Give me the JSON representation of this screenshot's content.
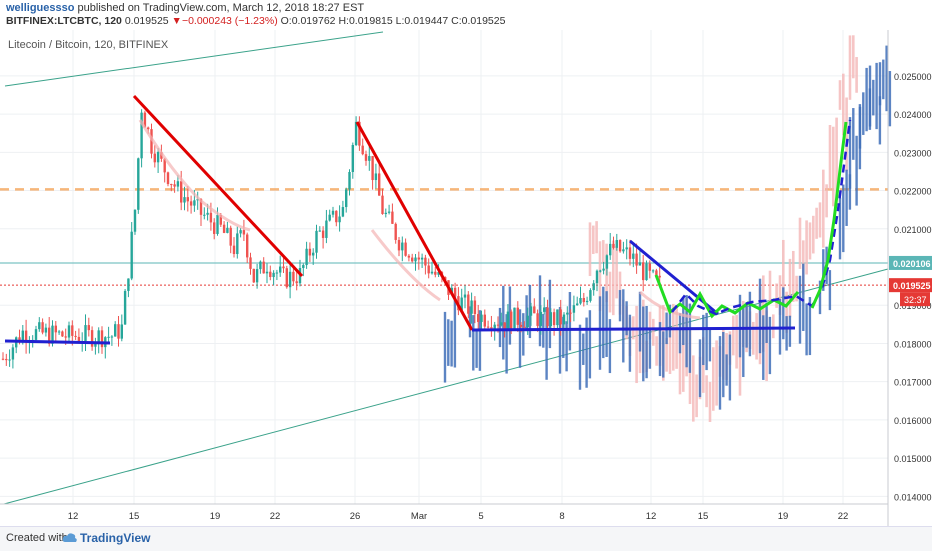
{
  "header": {
    "author": "welliguessso",
    "published_text": " published on TradingView.com, March 12, 2018 18:27 EST",
    "symbol": "BITFINEX:LTCBTC, 120",
    "last": "0.019525",
    "change_arrow": "▼",
    "change": "−0.000243 (−1.23%)",
    "open": "O:0.019762",
    "high": "H:0.019815",
    "low": "L:0.019447",
    "close": "C:0.019525"
  },
  "chart_data": {
    "type": "candlestick",
    "title": "Litecoin / Bitcoin, 120, BITFINEX",
    "x_ticks": [
      "12",
      "15",
      "19",
      "22",
      "26",
      "Mar",
      "5",
      "8",
      "12",
      "15",
      "19",
      "22"
    ],
    "y_ticks": [
      "0.025000",
      "0.024000",
      "0.023000",
      "0.022000",
      "0.021000",
      "0.019000",
      "0.018000",
      "0.017000",
      "0.016000",
      "0.015000",
      "0.014000"
    ],
    "ylim": [
      0.0138,
      0.0262
    ],
    "price_labels": [
      {
        "value": 0.020106,
        "text": "0.020106",
        "color": "#5bb6b6"
      },
      {
        "value": 0.019525,
        "text": "0.019525",
        "color": "#e53935"
      }
    ],
    "countdown": "32:37",
    "resistance_level": 0.02203,
    "colors": {
      "up": "#26a69a",
      "down": "#ef5350",
      "trend": "#e00000",
      "projection": "#2020d0",
      "green": "#22dd22",
      "channel": "#3aa28a",
      "level": "#f5a55a"
    }
  },
  "footer": {
    "created": "Created with",
    "brand": "TradingView"
  }
}
